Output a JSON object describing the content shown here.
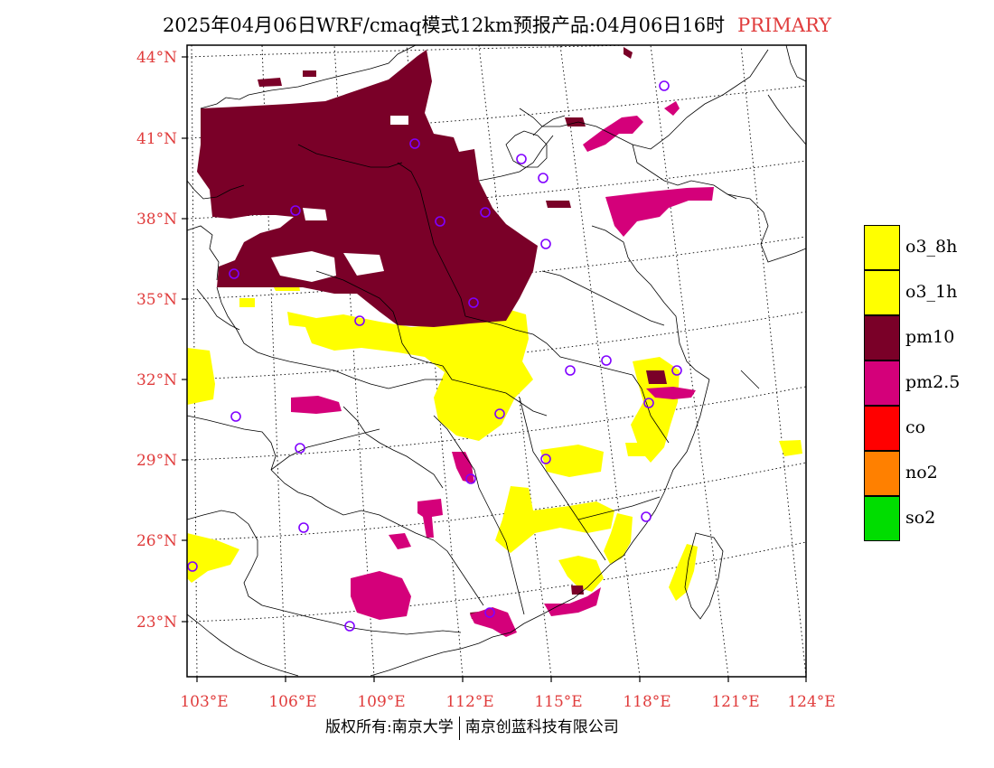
{
  "title": {
    "text": "2025年04月06日WRF/cmaq模式12km预报产品:04月06日16时",
    "tag": "PRIMARY",
    "tag_color": "#e03c3c"
  },
  "map": {
    "lat_labels": [
      "44°N",
      "41°N",
      "38°N",
      "35°N",
      "32°N",
      "29°N",
      "26°N",
      "23°N"
    ],
    "lon_labels": [
      "103°E",
      "106°E",
      "109°E",
      "112°E",
      "115°E",
      "118°E",
      "121°E",
      "124°E"
    ],
    "label_color": "#e03c3c"
  },
  "legend": [
    {
      "label": "o3_8h",
      "color": "#ffff00"
    },
    {
      "label": "o3_1h",
      "color": "#ffff00"
    },
    {
      "label": "pm10",
      "color": "#7a0028"
    },
    {
      "label": "pm2.5",
      "color": "#d4007a"
    },
    {
      "label": "co",
      "color": "#ff0000"
    },
    {
      "label": "no2",
      "color": "#ff8000"
    },
    {
      "label": "so2",
      "color": "#00dd00"
    }
  ],
  "footer": {
    "left": "版权所有:南京大学",
    "right": "南京创蓝科技有限公司"
  }
}
